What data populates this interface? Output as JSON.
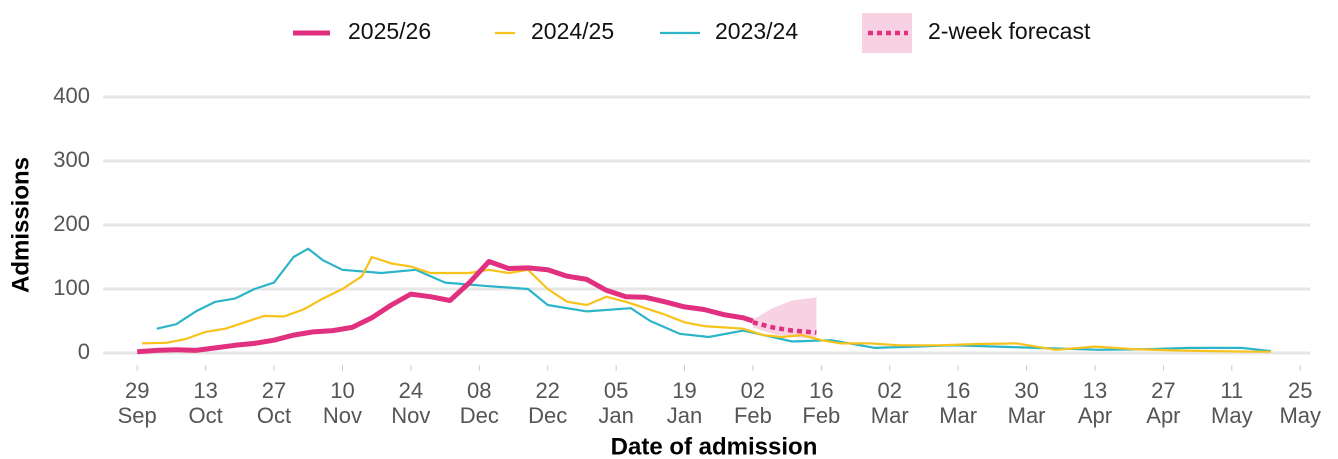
{
  "chart_data": {
    "type": "line",
    "xlabel": "Date of admission",
    "ylabel": "Admissions",
    "xlim": [
      -7,
      240
    ],
    "ylim": [
      0,
      400
    ],
    "yticks": [
      0,
      100,
      200,
      300,
      400
    ],
    "grid": true,
    "xticks": [
      {
        "value": 0,
        "label": "29 Sep"
      },
      {
        "value": 14,
        "label": "13 Oct"
      },
      {
        "value": 28,
        "label": "27 Oct"
      },
      {
        "value": 42,
        "label": "10 Nov"
      },
      {
        "value": 56,
        "label": "24 Nov"
      },
      {
        "value": 70,
        "label": "08 Dec"
      },
      {
        "value": 84,
        "label": "22 Dec"
      },
      {
        "value": 98,
        "label": "05 Jan"
      },
      {
        "value": 112,
        "label": "19 Jan"
      },
      {
        "value": 126,
        "label": "02 Feb"
      },
      {
        "value": 140,
        "label": "16 Feb"
      },
      {
        "value": 154,
        "label": "02 Mar"
      },
      {
        "value": 168,
        "label": "16 Mar"
      },
      {
        "value": 182,
        "label": "30 Mar"
      },
      {
        "value": 196,
        "label": "13 Apr"
      },
      {
        "value": 210,
        "label": "27 Apr"
      },
      {
        "value": 224,
        "label": "11 May"
      },
      {
        "value": 238,
        "label": "25 May"
      }
    ],
    "series": [
      {
        "name": "2023/24",
        "color": "#2cb5c9",
        "x": [
          4,
          8,
          12,
          16,
          20,
          24,
          28,
          32,
          35,
          38,
          42,
          50,
          57,
          63,
          71,
          80,
          84,
          92,
          101,
          105,
          111,
          117,
          124,
          130,
          134,
          142,
          151,
          159,
          167,
          176,
          184,
          197,
          207,
          215,
          226,
          232
        ],
        "values": [
          38,
          45,
          65,
          80,
          85,
          100,
          110,
          150,
          163,
          145,
          130,
          125,
          130,
          110,
          105,
          100,
          75,
          65,
          70,
          50,
          30,
          25,
          35,
          25,
          18,
          20,
          8,
          10,
          12,
          10,
          8,
          5,
          6,
          8,
          8,
          3
        ]
      },
      {
        "name": "2024/25",
        "color": "#f7c21c",
        "x": [
          1,
          6,
          10,
          14,
          18,
          22,
          26,
          30,
          34,
          38,
          42,
          46,
          48,
          52,
          56,
          60,
          64,
          68,
          72,
          76,
          80,
          84,
          88,
          92,
          96,
          100,
          104,
          108,
          112,
          116,
          120,
          124,
          128,
          132,
          136,
          140,
          144,
          150,
          156,
          164,
          172,
          180,
          188,
          196,
          204,
          212,
          220,
          228,
          232
        ],
        "values": [
          15,
          16,
          22,
          33,
          38,
          48,
          58,
          57,
          68,
          85,
          100,
          120,
          150,
          140,
          135,
          125,
          125,
          125,
          130,
          125,
          130,
          100,
          80,
          75,
          88,
          80,
          70,
          60,
          48,
          42,
          40,
          38,
          28,
          25,
          28,
          20,
          15,
          15,
          12,
          12,
          14,
          15,
          5,
          10,
          6,
          4,
          3,
          2,
          2
        ]
      },
      {
        "name": "2025/26",
        "color": "#e0307f",
        "x": [
          0,
          4,
          8,
          12,
          16,
          20,
          24,
          28,
          32,
          36,
          40,
          44,
          48,
          52,
          56,
          60,
          64,
          68,
          72,
          76,
          80,
          84,
          88,
          92,
          96,
          100,
          104,
          108,
          112,
          116,
          120,
          124,
          126
        ],
        "values": [
          2,
          4,
          5,
          4,
          8,
          12,
          15,
          20,
          28,
          33,
          35,
          40,
          55,
          75,
          92,
          88,
          82,
          110,
          143,
          132,
          133,
          130,
          120,
          115,
          98,
          88,
          87,
          80,
          72,
          68,
          60,
          55,
          50
        ]
      }
    ],
    "forecast": {
      "name": "2-week forecast",
      "color": "#e0307f",
      "x": [
        126,
        130,
        134,
        139
      ],
      "values": [
        48,
        40,
        35,
        32
      ],
      "lower": [
        40,
        30,
        25,
        22
      ],
      "upper": [
        52,
        70,
        82,
        87
      ]
    }
  }
}
